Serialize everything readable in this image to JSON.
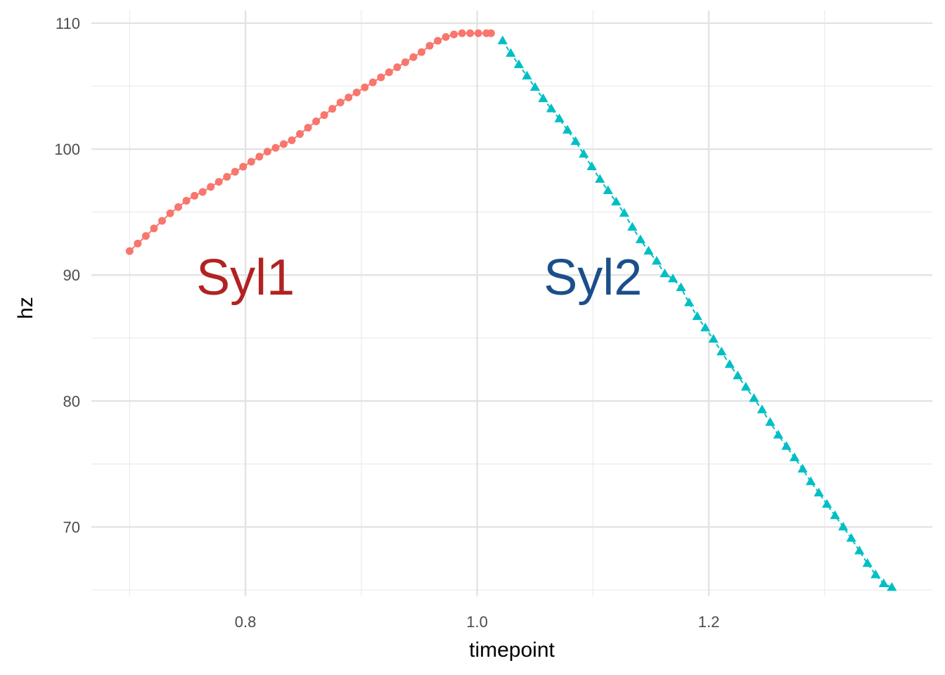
{
  "chart_data": {
    "type": "scatter",
    "title": "",
    "xlabel": "timepoint",
    "ylabel": "hz",
    "xlim": [
      0.667,
      1.393
    ],
    "ylim": [
      64.5,
      111
    ],
    "x_ticks": [
      0.8,
      1.0,
      1.2
    ],
    "x_tick_labels": [
      "0.8",
      "1.0",
      "1.2"
    ],
    "x_minor_ticks": [
      0.7,
      0.9,
      1.1,
      1.3
    ],
    "y_ticks": [
      70,
      80,
      90,
      100,
      110
    ],
    "y_tick_labels": [
      "70",
      "80",
      "90",
      "100",
      "110"
    ],
    "y_minor_ticks": [
      65,
      75,
      85,
      95,
      105
    ],
    "grid": true,
    "legend": "none",
    "annotations": [
      {
        "text": "Syl1",
        "x": 0.8,
        "y": 89.9,
        "color": "#b22222"
      },
      {
        "text": "Syl2",
        "x": 1.1,
        "y": 89.9,
        "color": "#1a4f8b"
      }
    ],
    "series": [
      {
        "marker": "circle",
        "color": "#f8766d",
        "x": [
          0.7,
          0.707,
          0.714,
          0.721,
          0.728,
          0.735,
          0.742,
          0.749,
          0.756,
          0.763,
          0.77,
          0.777,
          0.784,
          0.791,
          0.798,
          0.805,
          0.812,
          0.819,
          0.826,
          0.833,
          0.84,
          0.847,
          0.854,
          0.861,
          0.868,
          0.875,
          0.882,
          0.889,
          0.896,
          0.903,
          0.91,
          0.917,
          0.924,
          0.931,
          0.938,
          0.945,
          0.952,
          0.959,
          0.966,
          0.973,
          0.98,
          0.987,
          0.994,
          1.001,
          1.008,
          1.012
        ],
        "y": [
          91.9,
          92.5,
          93.1,
          93.7,
          94.3,
          94.9,
          95.4,
          95.9,
          96.3,
          96.6,
          97.0,
          97.4,
          97.8,
          98.2,
          98.6,
          99.0,
          99.4,
          99.8,
          100.1,
          100.4,
          100.7,
          101.2,
          101.7,
          102.2,
          102.7,
          103.2,
          103.7,
          104.1,
          104.5,
          104.9,
          105.3,
          105.7,
          106.1,
          106.5,
          106.9,
          107.3,
          107.7,
          108.2,
          108.6,
          108.9,
          109.1,
          109.2,
          109.2,
          109.2,
          109.2,
          109.2
        ]
      },
      {
        "marker": "triangle",
        "color": "#00bfc4",
        "x": [
          1.022,
          1.029,
          1.036,
          1.043,
          1.05,
          1.057,
          1.064,
          1.071,
          1.078,
          1.085,
          1.092,
          1.099,
          1.106,
          1.113,
          1.12,
          1.127,
          1.134,
          1.141,
          1.148,
          1.155,
          1.162,
          1.169,
          1.176,
          1.183,
          1.19,
          1.197,
          1.204,
          1.211,
          1.218,
          1.225,
          1.232,
          1.239,
          1.246,
          1.253,
          1.26,
          1.267,
          1.274,
          1.281,
          1.288,
          1.295,
          1.302,
          1.309,
          1.316,
          1.323,
          1.33,
          1.337,
          1.344,
          1.351,
          1.358
        ],
        "y": [
          108.6,
          107.6,
          106.7,
          105.8,
          104.9,
          104.0,
          103.2,
          102.4,
          101.5,
          100.6,
          99.6,
          98.6,
          97.6,
          96.7,
          95.8,
          94.9,
          93.8,
          92.8,
          91.9,
          91.1,
          90.1,
          89.7,
          89.0,
          87.8,
          86.7,
          85.8,
          84.9,
          83.9,
          82.9,
          82.0,
          81.1,
          80.2,
          79.3,
          78.3,
          77.3,
          76.4,
          75.5,
          74.6,
          73.6,
          72.7,
          71.8,
          70.9,
          70.0,
          69.1,
          68.1,
          67.1,
          66.2,
          65.5,
          65.2
        ]
      }
    ]
  }
}
